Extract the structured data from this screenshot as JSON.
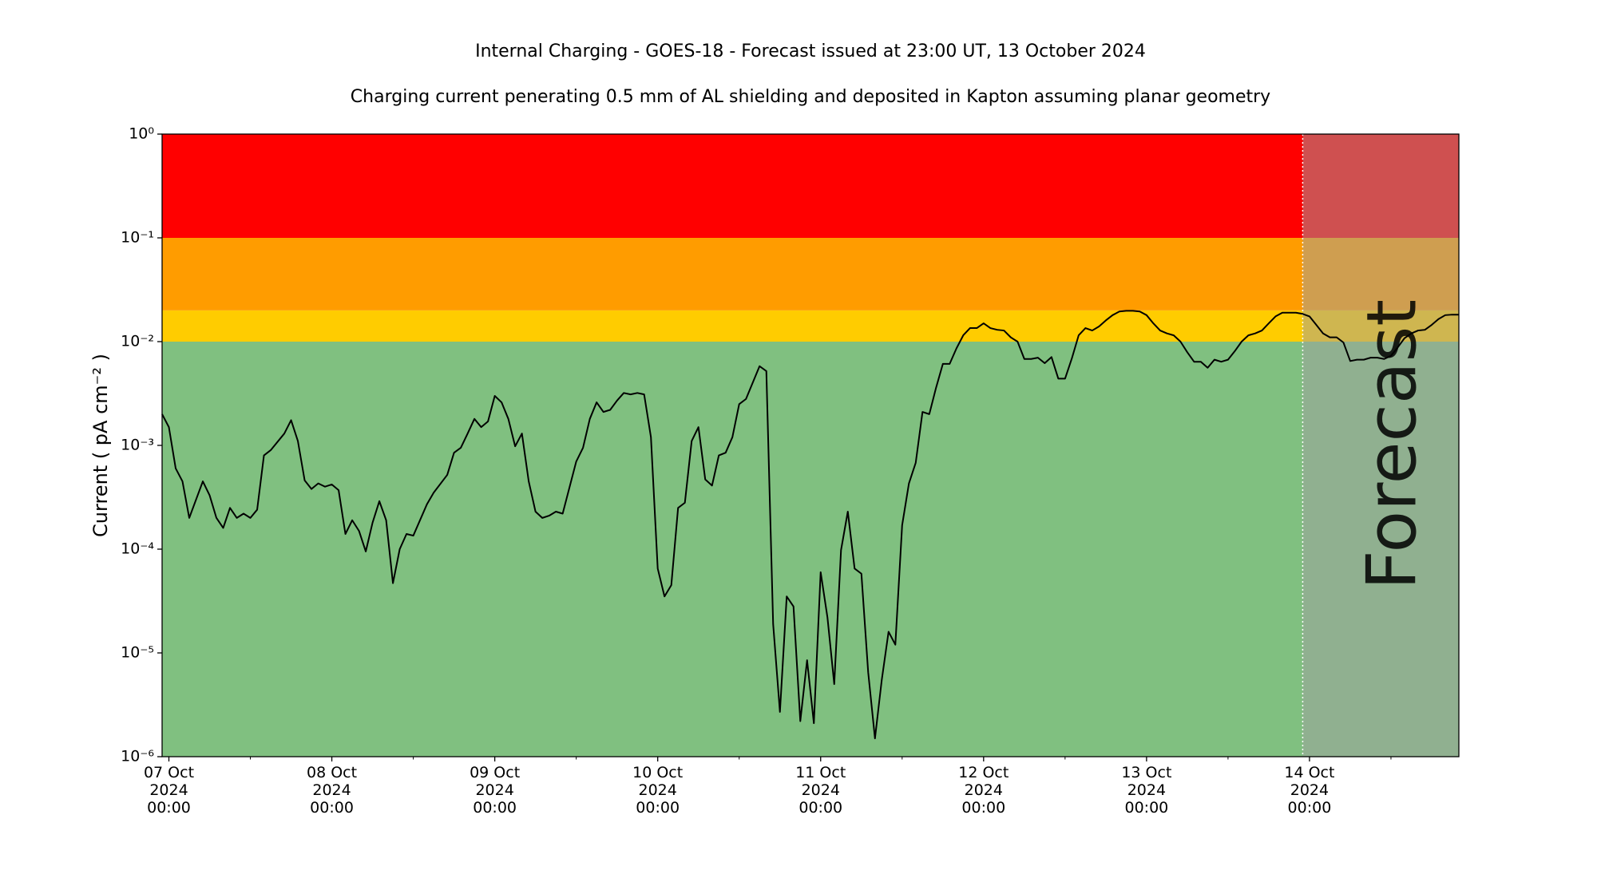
{
  "chart_data": {
    "type": "line",
    "title": "Internal Charging - GOES-18 - Forecast issued at 23:00 UT, 13 October 2024",
    "subtitle": "Charging current penerating 0.5 mm of AL shielding and deposited in Kapton assuming planar geometry",
    "ylabel": "Current ( pA cm⁻² )",
    "ylog": true,
    "ylim": [
      1e-06,
      1
    ],
    "yticks": [
      {
        "value": 1e-06,
        "label": "10⁻⁶"
      },
      {
        "value": 1e-05,
        "label": "10⁻⁵"
      },
      {
        "value": 0.0001,
        "label": "10⁻⁴"
      },
      {
        "value": 0.001,
        "label": "10⁻³"
      },
      {
        "value": 0.01,
        "label": "10⁻²"
      },
      {
        "value": 0.1,
        "label": "10⁻¹"
      },
      {
        "value": 1,
        "label": "10⁰"
      }
    ],
    "xlim": [
      "2024-10-06 23:00",
      "2024-10-14 22:00"
    ],
    "xticks": [
      {
        "value": "2024-10-07 00:00",
        "label": "07 Oct\n2024\n00:00"
      },
      {
        "value": "2024-10-08 00:00",
        "label": "08 Oct\n2024\n00:00"
      },
      {
        "value": "2024-10-09 00:00",
        "label": "09 Oct\n2024\n00:00"
      },
      {
        "value": "2024-10-10 00:00",
        "label": "10 Oct\n2024\n00:00"
      },
      {
        "value": "2024-10-11 00:00",
        "label": "11 Oct\n2024\n00:00"
      },
      {
        "value": "2024-10-12 00:00",
        "label": "12 Oct\n2024\n00:00"
      },
      {
        "value": "2024-10-13 00:00",
        "label": "13 Oct\n2024\n00:00"
      },
      {
        "value": "2024-10-14 00:00",
        "label": "14 Oct\n2024\n00:00"
      }
    ],
    "xminorticks": [
      "2024-10-07 12:00",
      "2024-10-08 12:00",
      "2024-10-09 12:00",
      "2024-10-10 12:00",
      "2024-10-11 12:00",
      "2024-10-12 12:00",
      "2024-10-13 12:00",
      "2024-10-14 12:00"
    ],
    "bands": [
      {
        "from": 1e-06,
        "to": 0.01,
        "color": "#80c080"
      },
      {
        "from": 0.01,
        "to": 0.02,
        "color": "#ffcc00"
      },
      {
        "from": 0.02,
        "to": 0.1,
        "color": "#ff9c00"
      },
      {
        "from": 0.1,
        "to": 1,
        "color": "#ff0000"
      }
    ],
    "forecast_start": "2024-10-13 23:00",
    "forecast_label": "Forecast",
    "forecast_color": "#a0a0a0",
    "color": "#000000",
    "x": [
      "2024-10-06 23:00",
      "2024-10-07 00:00",
      "2024-10-07 01:00",
      "2024-10-07 02:00",
      "2024-10-07 03:00",
      "2024-10-07 05:00",
      "2024-10-07 06:00",
      "2024-10-07 07:00",
      "2024-10-07 08:00",
      "2024-10-07 09:00",
      "2024-10-07 10:00",
      "2024-10-07 11:00",
      "2024-10-07 12:00",
      "2024-10-07 13:00",
      "2024-10-07 14:00",
      "2024-10-07 15:00",
      "2024-10-07 17:00",
      "2024-10-07 18:00",
      "2024-10-07 19:00",
      "2024-10-07 20:00",
      "2024-10-07 21:00",
      "2024-10-07 22:00",
      "2024-10-07 23:00",
      "2024-10-08 00:00",
      "2024-10-08 01:00",
      "2024-10-08 02:00",
      "2024-10-08 03:00",
      "2024-10-08 04:00",
      "2024-10-08 05:00",
      "2024-10-08 06:00",
      "2024-10-08 07:00",
      "2024-10-08 08:00",
      "2024-10-08 09:00",
      "2024-10-08 10:00",
      "2024-10-08 11:00",
      "2024-10-08 12:00",
      "2024-10-08 14:00",
      "2024-10-08 15:00",
      "2024-10-08 17:00",
      "2024-10-08 18:00",
      "2024-10-08 19:00",
      "2024-10-08 20:00",
      "2024-10-08 21:00",
      "2024-10-08 22:00",
      "2024-10-08 23:00",
      "2024-10-09 00:00",
      "2024-10-09 01:00",
      "2024-10-09 02:00",
      "2024-10-09 03:00",
      "2024-10-09 04:00",
      "2024-10-09 05:00",
      "2024-10-09 06:00",
      "2024-10-09 07:00",
      "2024-10-09 08:00",
      "2024-10-09 09:00",
      "2024-10-09 10:00",
      "2024-10-09 12:00",
      "2024-10-09 13:00",
      "2024-10-09 14:00",
      "2024-10-09 15:00",
      "2024-10-09 16:00",
      "2024-10-09 17:00",
      "2024-10-09 18:00",
      "2024-10-09 19:00",
      "2024-10-09 20:00",
      "2024-10-09 21:00",
      "2024-10-09 22:00",
      "2024-10-09 23:00",
      "2024-10-10 00:00",
      "2024-10-10 01:00",
      "2024-10-10 02:00",
      "2024-10-10 03:00",
      "2024-10-10 04:00",
      "2024-10-10 05:00",
      "2024-10-10 06:00",
      "2024-10-10 07:00",
      "2024-10-10 08:00",
      "2024-10-10 09:00",
      "2024-10-10 10:00",
      "2024-10-10 11:00",
      "2024-10-10 12:00",
      "2024-10-10 13:00",
      "2024-10-10 15:00",
      "2024-10-10 16:00",
      "2024-10-10 17:00",
      "2024-10-10 18:00",
      "2024-10-10 19:00",
      "2024-10-10 20:00",
      "2024-10-10 21:00",
      "2024-10-10 22:00",
      "2024-10-10 23:00",
      "2024-10-11 00:00",
      "2024-10-11 01:00",
      "2024-10-11 02:00",
      "2024-10-11 03:00",
      "2024-10-11 04:00",
      "2024-10-11 05:00",
      "2024-10-11 06:00",
      "2024-10-11 07:00",
      "2024-10-11 08:00",
      "2024-10-11 09:00",
      "2024-10-11 10:00",
      "2024-10-11 11:00",
      "2024-10-11 12:00",
      "2024-10-11 13:00",
      "2024-10-11 14:00",
      "2024-10-11 15:00",
      "2024-10-11 16:00",
      "2024-10-11 17:00",
      "2024-10-11 18:00",
      "2024-10-11 19:00",
      "2024-10-11 20:00",
      "2024-10-11 21:00",
      "2024-10-11 22:00",
      "2024-10-11 23:00",
      "2024-10-12 00:00",
      "2024-10-12 01:00",
      "2024-10-12 02:00",
      "2024-10-12 03:00",
      "2024-10-12 04:00",
      "2024-10-12 05:00",
      "2024-10-12 06:00",
      "2024-10-12 07:00",
      "2024-10-12 08:00",
      "2024-10-12 09:00",
      "2024-10-12 10:00",
      "2024-10-12 11:00",
      "2024-10-12 12:00",
      "2024-10-12 13:00",
      "2024-10-12 14:00",
      "2024-10-12 15:00",
      "2024-10-12 16:00",
      "2024-10-12 17:00",
      "2024-10-12 18:00",
      "2024-10-12 19:00",
      "2024-10-12 20:00",
      "2024-10-12 21:00",
      "2024-10-12 22:00",
      "2024-10-12 23:00",
      "2024-10-13 00:00",
      "2024-10-13 01:00",
      "2024-10-13 02:00",
      "2024-10-13 03:00",
      "2024-10-13 04:00",
      "2024-10-13 05:00",
      "2024-10-13 06:00",
      "2024-10-13 07:00",
      "2024-10-13 08:00",
      "2024-10-13 09:00",
      "2024-10-13 10:00",
      "2024-10-13 11:00",
      "2024-10-13 12:00",
      "2024-10-13 13:00",
      "2024-10-13 14:00",
      "2024-10-13 15:00",
      "2024-10-13 16:00",
      "2024-10-13 17:00",
      "2024-10-13 18:00",
      "2024-10-13 19:00",
      "2024-10-13 20:00",
      "2024-10-13 21:00",
      "2024-10-13 22:00",
      "2024-10-13 23:00",
      "2024-10-14 00:00",
      "2024-10-14 01:00",
      "2024-10-14 02:00",
      "2024-10-14 03:00",
      "2024-10-14 04:00",
      "2024-10-14 05:00",
      "2024-10-14 06:00",
      "2024-10-14 07:00",
      "2024-10-14 08:00",
      "2024-10-14 09:00",
      "2024-10-14 10:00",
      "2024-10-14 11:00",
      "2024-10-14 12:00",
      "2024-10-14 13:00",
      "2024-10-14 14:00",
      "2024-10-14 15:00",
      "2024-10-14 16:00",
      "2024-10-14 17:00",
      "2024-10-14 18:00",
      "2024-10-14 19:00",
      "2024-10-14 20:00",
      "2024-10-14 21:00",
      "2024-10-14 22:00"
    ],
    "values": [
      0.002,
      0.0015,
      0.0006,
      0.00045,
      0.0002,
      0.00045,
      0.00033,
      0.0002,
      0.00016,
      0.00025,
      0.0002,
      0.00022,
      0.0002,
      0.00024,
      0.0008,
      0.0009,
      0.0013,
      0.00175,
      0.0011,
      0.00046,
      0.00038,
      0.00043,
      0.0004,
      0.00042,
      0.00037,
      0.00014,
      0.00019,
      0.00015,
      9.5e-05,
      0.00018,
      0.00029,
      0.00019,
      4.7e-05,
      0.0001,
      0.00014,
      0.000135,
      0.00027,
      0.00035,
      0.00052,
      0.00085,
      0.00095,
      0.0013,
      0.0018,
      0.0015,
      0.0017,
      0.003,
      0.0026,
      0.0018,
      0.00098,
      0.0013,
      0.00045,
      0.00023,
      0.0002,
      0.00021,
      0.00023,
      0.00022,
      0.0007,
      0.00095,
      0.0018,
      0.0026,
      0.0021,
      0.0022,
      0.0027,
      0.0032,
      0.0031,
      0.0032,
      0.0031,
      0.0012,
      6.5e-05,
      3.5e-05,
      4.5e-05,
      0.00025,
      0.00028,
      0.0011,
      0.0015,
      0.00047,
      0.00041,
      0.0008,
      0.00085,
      0.0012,
      0.0025,
      0.0028,
      0.0058,
      0.0052,
      1.9e-05,
      2.7e-06,
      3.5e-05,
      2.8e-05,
      2.2e-06,
      8.5e-06,
      2.1e-06,
      6e-05,
      2.2e-05,
      5e-06,
      9.8e-05,
      0.00023,
      6.5e-05,
      5.8e-05,
      6.5e-06,
      1.5e-06,
      5.5e-06,
      1.6e-05,
      1.2e-05,
      0.00017,
      0.00043,
      0.00068,
      0.0021,
      0.002,
      0.0036,
      0.0061,
      0.0061,
      0.0086,
      0.0115,
      0.0135,
      0.0135,
      0.015,
      0.0135,
      0.013,
      0.0128,
      0.011,
      0.01,
      0.0068,
      0.0068,
      0.007,
      0.0062,
      0.0071,
      0.0044,
      0.0044,
      0.0069,
      0.0115,
      0.0135,
      0.0128,
      0.014,
      0.016,
      0.018,
      0.0195,
      0.0198,
      0.0198,
      0.0195,
      0.018,
      0.015,
      0.0128,
      0.012,
      0.0115,
      0.01,
      0.0079,
      0.0064,
      0.0064,
      0.0056,
      0.0067,
      0.0064,
      0.0067,
      0.0081,
      0.01,
      0.0115,
      0.012,
      0.0128,
      0.015,
      0.0175,
      0.019,
      0.019,
      0.019,
      0.0185,
      0.0175,
      0.0145,
      0.012,
      0.011,
      0.011,
      0.0098,
      0.0065,
      0.0067,
      0.0067,
      0.007,
      0.007,
      0.0068,
      0.0073,
      0.0088,
      0.0108,
      0.012,
      0.0128,
      0.013,
      0.0145,
      0.0165,
      0.018,
      0.0182,
      0.0182
    ]
  }
}
